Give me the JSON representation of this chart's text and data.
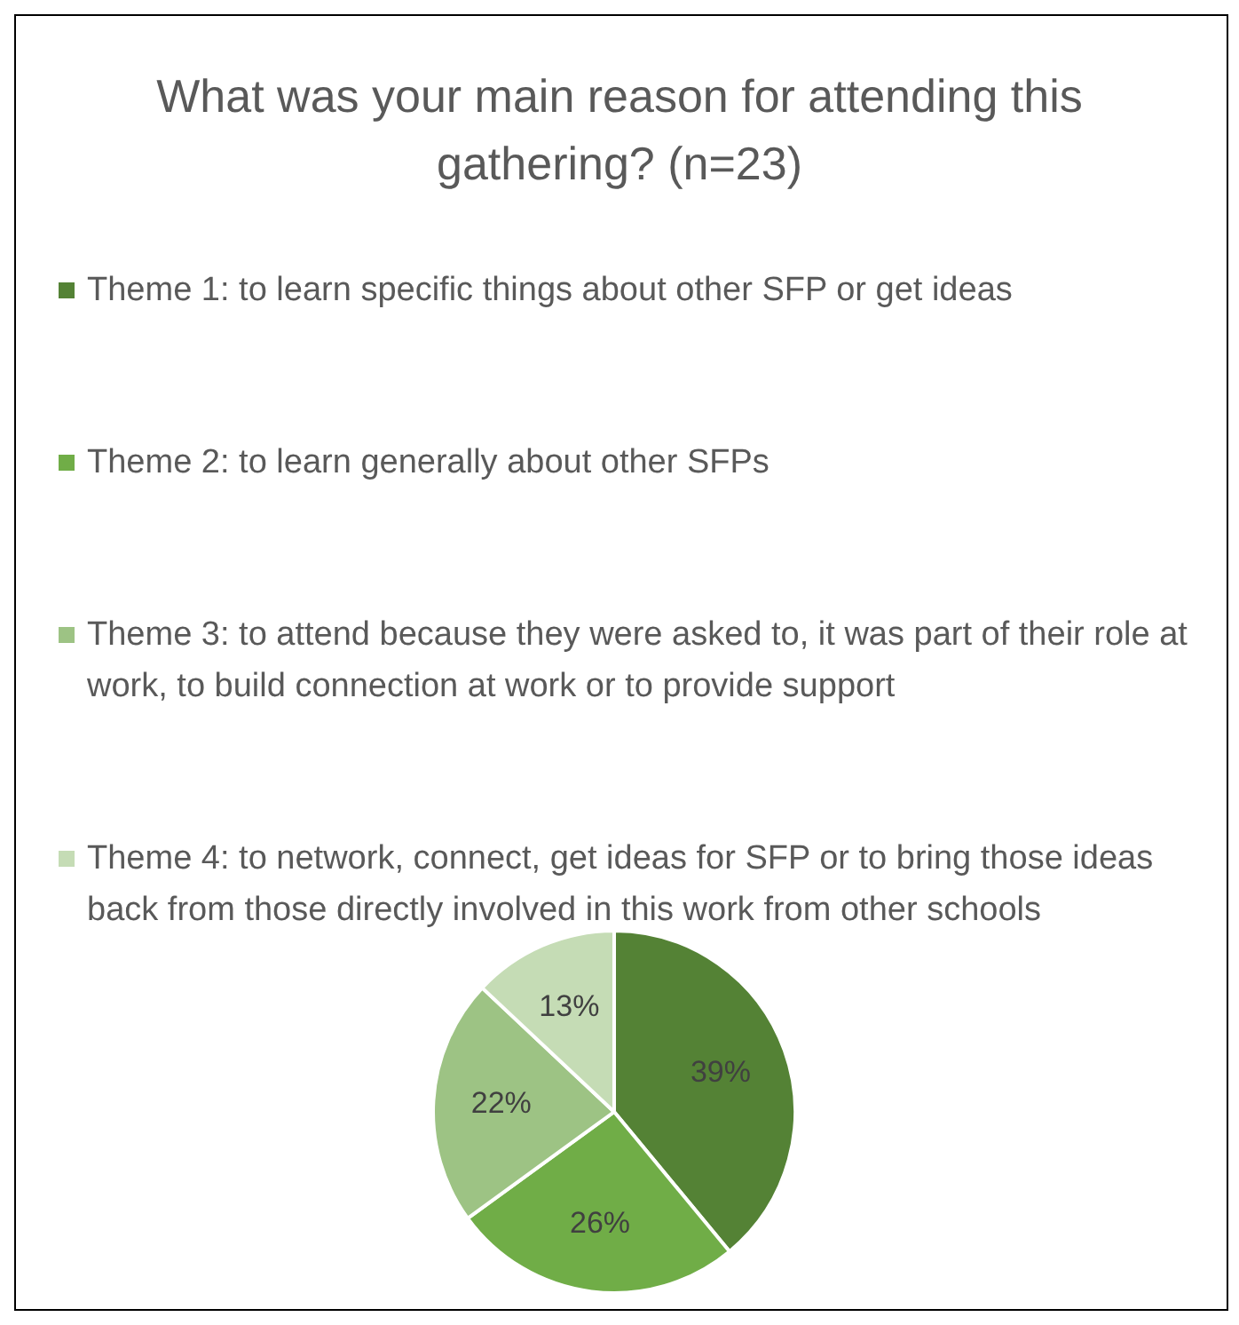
{
  "chart_data": {
    "type": "pie",
    "title": "What was your main reason for attending this gathering? (n=23)",
    "categories": [
      "Theme 1: to learn specific things about other SFP or get ideas",
      "Theme 2: to learn generally about other SFPs",
      "Theme 3: to attend because they were asked to, it was part of their role at work, to build connection at work or to provide support",
      "Theme 4: to network, connect, get ideas for SFP or to bring those ideas back from those directly involved in this work from other schools"
    ],
    "values": [
      39,
      26,
      22,
      13
    ],
    "colors": [
      "#548235",
      "#70ad47",
      "#9dc384",
      "#c5dcb5"
    ],
    "value_labels": [
      "39%",
      "26%",
      "22%",
      "13%"
    ],
    "legend": "top"
  }
}
